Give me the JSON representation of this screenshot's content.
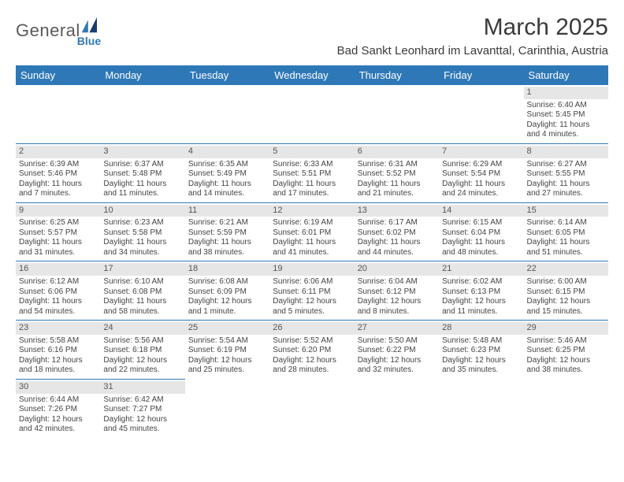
{
  "logo": {
    "main": "General",
    "sub": "Blue"
  },
  "title": "March 2025",
  "location": "Bad Sankt Leonhard im Lavanttal, Carinthia, Austria",
  "colors": {
    "header_bg": "#2f78b7",
    "header_fg": "#ffffff",
    "daynum_bg": "#e6e6e6",
    "rule": "#2f78b7"
  },
  "weekdays": [
    "Sunday",
    "Monday",
    "Tuesday",
    "Wednesday",
    "Thursday",
    "Friday",
    "Saturday"
  ],
  "weeks": [
    [
      null,
      null,
      null,
      null,
      null,
      null,
      {
        "n": "1",
        "sr": "Sunrise: 6:40 AM",
        "ss": "Sunset: 5:45 PM",
        "d1": "Daylight: 11 hours",
        "d2": "and 4 minutes."
      }
    ],
    [
      {
        "n": "2",
        "sr": "Sunrise: 6:39 AM",
        "ss": "Sunset: 5:46 PM",
        "d1": "Daylight: 11 hours",
        "d2": "and 7 minutes."
      },
      {
        "n": "3",
        "sr": "Sunrise: 6:37 AM",
        "ss": "Sunset: 5:48 PM",
        "d1": "Daylight: 11 hours",
        "d2": "and 11 minutes."
      },
      {
        "n": "4",
        "sr": "Sunrise: 6:35 AM",
        "ss": "Sunset: 5:49 PM",
        "d1": "Daylight: 11 hours",
        "d2": "and 14 minutes."
      },
      {
        "n": "5",
        "sr": "Sunrise: 6:33 AM",
        "ss": "Sunset: 5:51 PM",
        "d1": "Daylight: 11 hours",
        "d2": "and 17 minutes."
      },
      {
        "n": "6",
        "sr": "Sunrise: 6:31 AM",
        "ss": "Sunset: 5:52 PM",
        "d1": "Daylight: 11 hours",
        "d2": "and 21 minutes."
      },
      {
        "n": "7",
        "sr": "Sunrise: 6:29 AM",
        "ss": "Sunset: 5:54 PM",
        "d1": "Daylight: 11 hours",
        "d2": "and 24 minutes."
      },
      {
        "n": "8",
        "sr": "Sunrise: 6:27 AM",
        "ss": "Sunset: 5:55 PM",
        "d1": "Daylight: 11 hours",
        "d2": "and 27 minutes."
      }
    ],
    [
      {
        "n": "9",
        "sr": "Sunrise: 6:25 AM",
        "ss": "Sunset: 5:57 PM",
        "d1": "Daylight: 11 hours",
        "d2": "and 31 minutes."
      },
      {
        "n": "10",
        "sr": "Sunrise: 6:23 AM",
        "ss": "Sunset: 5:58 PM",
        "d1": "Daylight: 11 hours",
        "d2": "and 34 minutes."
      },
      {
        "n": "11",
        "sr": "Sunrise: 6:21 AM",
        "ss": "Sunset: 5:59 PM",
        "d1": "Daylight: 11 hours",
        "d2": "and 38 minutes."
      },
      {
        "n": "12",
        "sr": "Sunrise: 6:19 AM",
        "ss": "Sunset: 6:01 PM",
        "d1": "Daylight: 11 hours",
        "d2": "and 41 minutes."
      },
      {
        "n": "13",
        "sr": "Sunrise: 6:17 AM",
        "ss": "Sunset: 6:02 PM",
        "d1": "Daylight: 11 hours",
        "d2": "and 44 minutes."
      },
      {
        "n": "14",
        "sr": "Sunrise: 6:15 AM",
        "ss": "Sunset: 6:04 PM",
        "d1": "Daylight: 11 hours",
        "d2": "and 48 minutes."
      },
      {
        "n": "15",
        "sr": "Sunrise: 6:14 AM",
        "ss": "Sunset: 6:05 PM",
        "d1": "Daylight: 11 hours",
        "d2": "and 51 minutes."
      }
    ],
    [
      {
        "n": "16",
        "sr": "Sunrise: 6:12 AM",
        "ss": "Sunset: 6:06 PM",
        "d1": "Daylight: 11 hours",
        "d2": "and 54 minutes."
      },
      {
        "n": "17",
        "sr": "Sunrise: 6:10 AM",
        "ss": "Sunset: 6:08 PM",
        "d1": "Daylight: 11 hours",
        "d2": "and 58 minutes."
      },
      {
        "n": "18",
        "sr": "Sunrise: 6:08 AM",
        "ss": "Sunset: 6:09 PM",
        "d1": "Daylight: 12 hours",
        "d2": "and 1 minute."
      },
      {
        "n": "19",
        "sr": "Sunrise: 6:06 AM",
        "ss": "Sunset: 6:11 PM",
        "d1": "Daylight: 12 hours",
        "d2": "and 5 minutes."
      },
      {
        "n": "20",
        "sr": "Sunrise: 6:04 AM",
        "ss": "Sunset: 6:12 PM",
        "d1": "Daylight: 12 hours",
        "d2": "and 8 minutes."
      },
      {
        "n": "21",
        "sr": "Sunrise: 6:02 AM",
        "ss": "Sunset: 6:13 PM",
        "d1": "Daylight: 12 hours",
        "d2": "and 11 minutes."
      },
      {
        "n": "22",
        "sr": "Sunrise: 6:00 AM",
        "ss": "Sunset: 6:15 PM",
        "d1": "Daylight: 12 hours",
        "d2": "and 15 minutes."
      }
    ],
    [
      {
        "n": "23",
        "sr": "Sunrise: 5:58 AM",
        "ss": "Sunset: 6:16 PM",
        "d1": "Daylight: 12 hours",
        "d2": "and 18 minutes."
      },
      {
        "n": "24",
        "sr": "Sunrise: 5:56 AM",
        "ss": "Sunset: 6:18 PM",
        "d1": "Daylight: 12 hours",
        "d2": "and 22 minutes."
      },
      {
        "n": "25",
        "sr": "Sunrise: 5:54 AM",
        "ss": "Sunset: 6:19 PM",
        "d1": "Daylight: 12 hours",
        "d2": "and 25 minutes."
      },
      {
        "n": "26",
        "sr": "Sunrise: 5:52 AM",
        "ss": "Sunset: 6:20 PM",
        "d1": "Daylight: 12 hours",
        "d2": "and 28 minutes."
      },
      {
        "n": "27",
        "sr": "Sunrise: 5:50 AM",
        "ss": "Sunset: 6:22 PM",
        "d1": "Daylight: 12 hours",
        "d2": "and 32 minutes."
      },
      {
        "n": "28",
        "sr": "Sunrise: 5:48 AM",
        "ss": "Sunset: 6:23 PM",
        "d1": "Daylight: 12 hours",
        "d2": "and 35 minutes."
      },
      {
        "n": "29",
        "sr": "Sunrise: 5:46 AM",
        "ss": "Sunset: 6:25 PM",
        "d1": "Daylight: 12 hours",
        "d2": "and 38 minutes."
      }
    ],
    [
      {
        "n": "30",
        "sr": "Sunrise: 6:44 AM",
        "ss": "Sunset: 7:26 PM",
        "d1": "Daylight: 12 hours",
        "d2": "and 42 minutes."
      },
      {
        "n": "31",
        "sr": "Sunrise: 6:42 AM",
        "ss": "Sunset: 7:27 PM",
        "d1": "Daylight: 12 hours",
        "d2": "and 45 minutes."
      },
      null,
      null,
      null,
      null,
      null
    ]
  ]
}
